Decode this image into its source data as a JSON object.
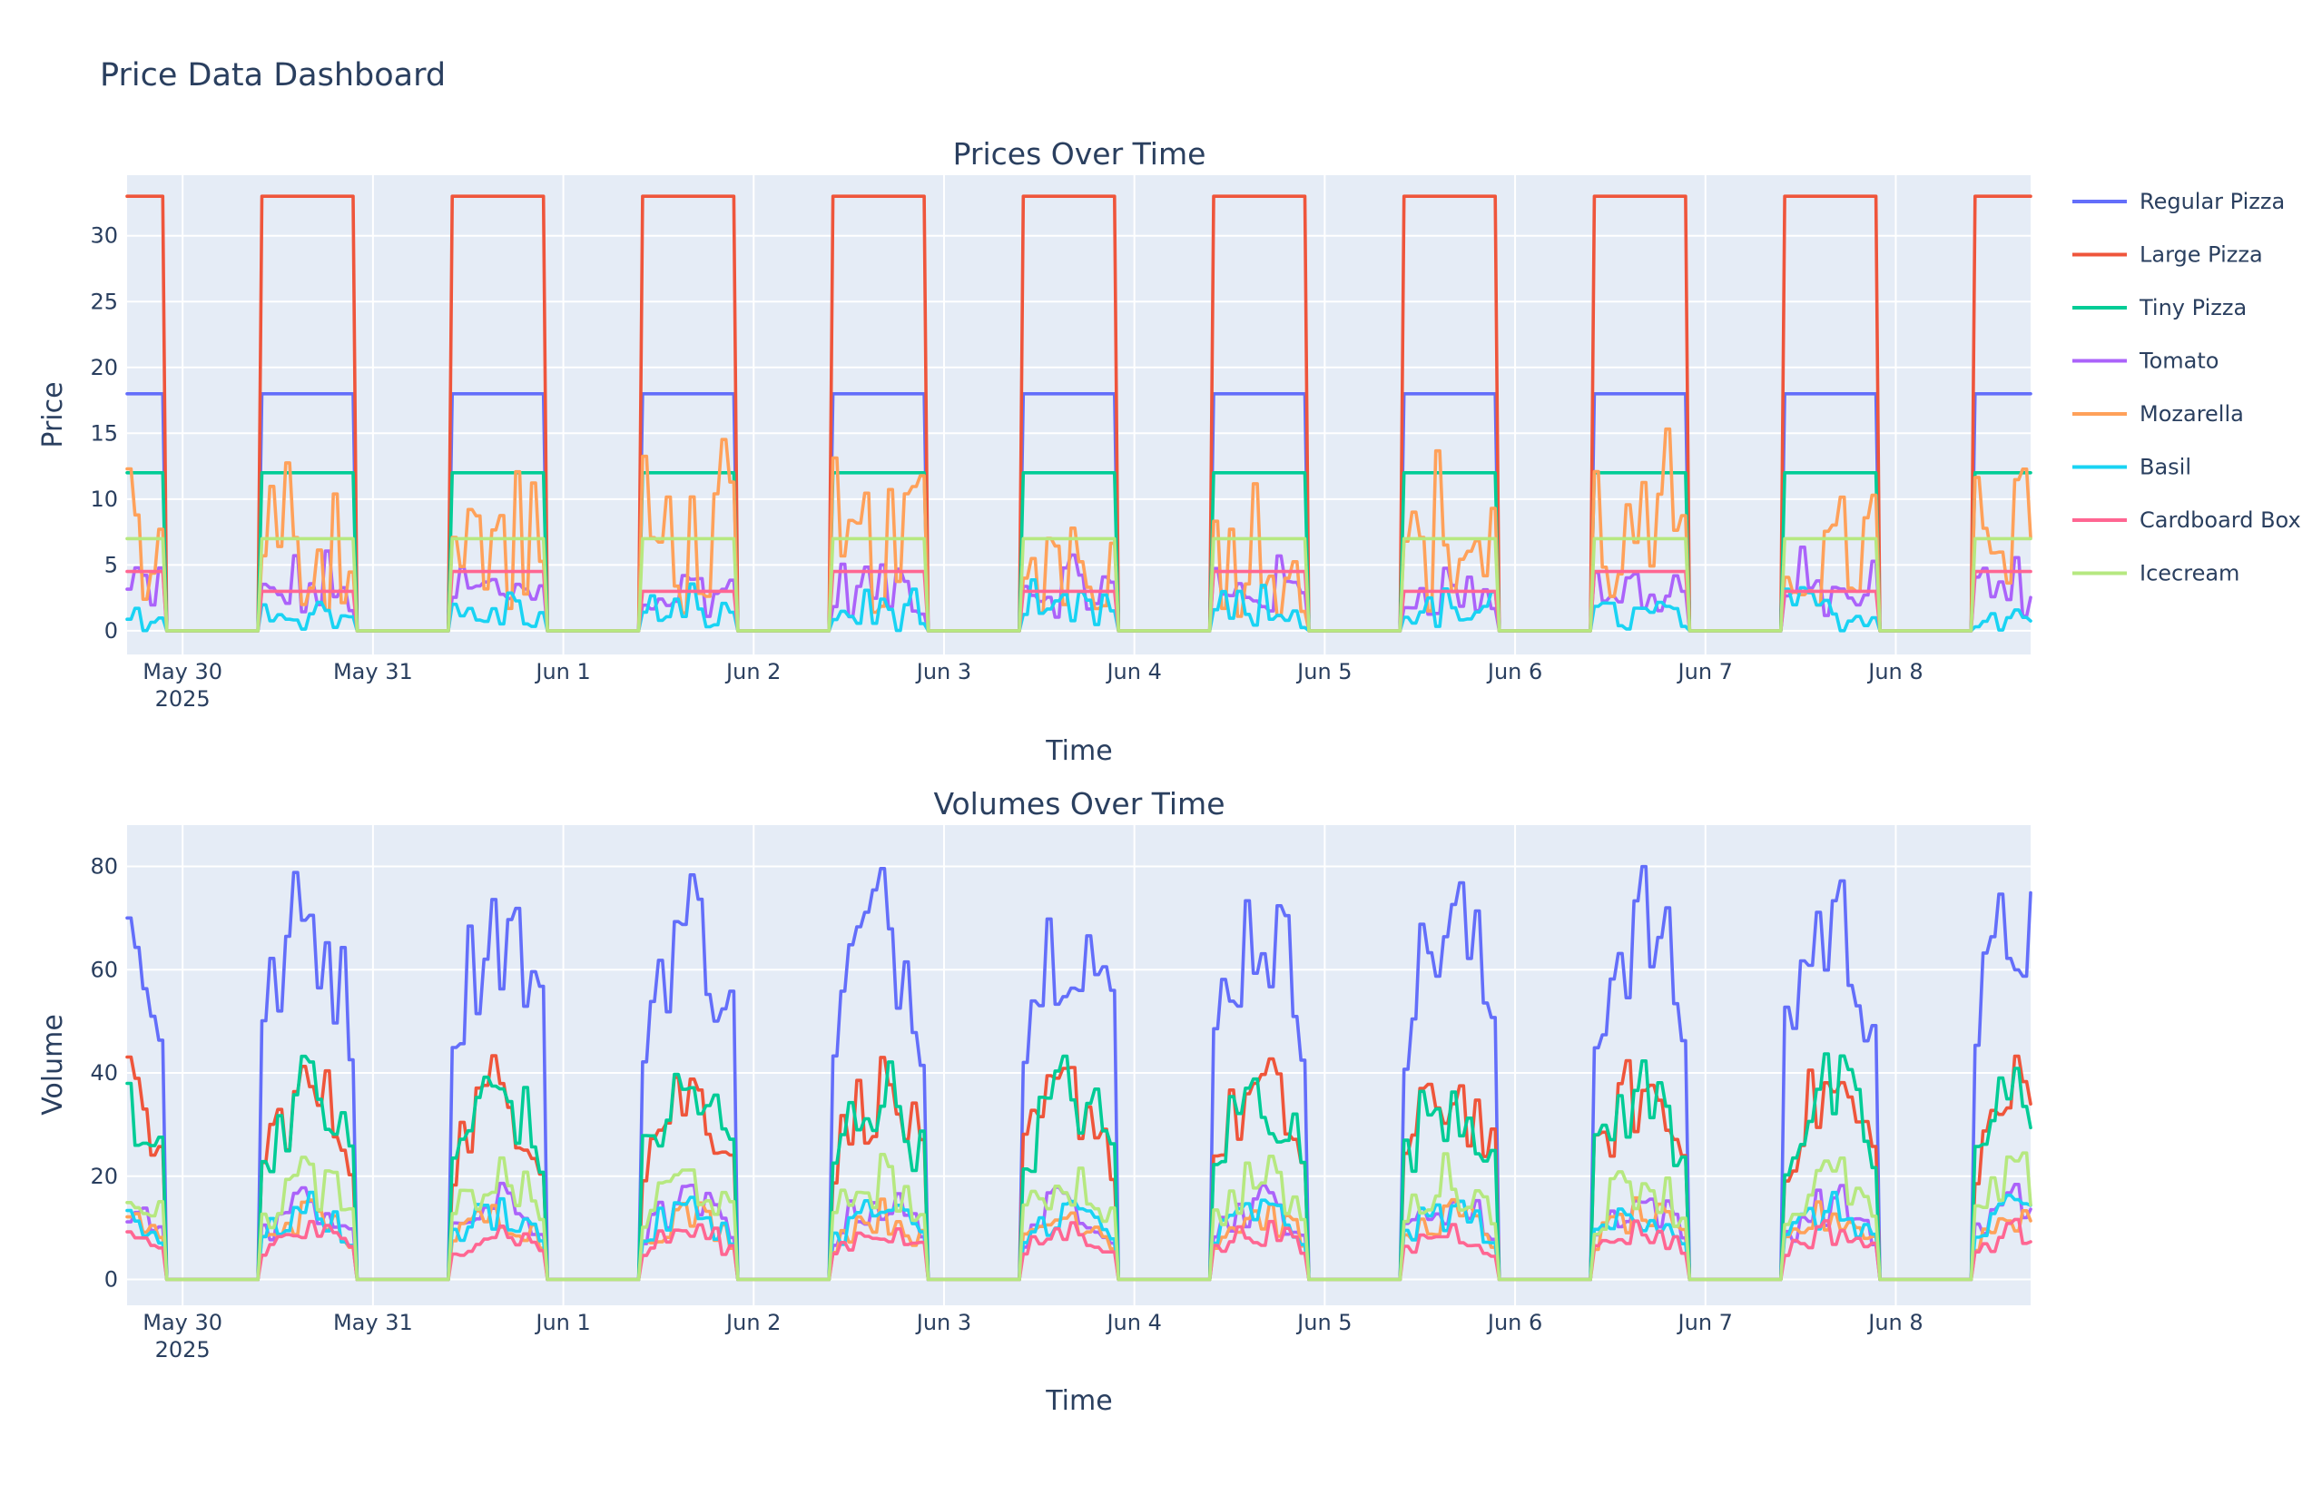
{
  "page": {
    "title": "Price Data Dashboard"
  },
  "legend": {
    "items": [
      {
        "name": "Regular Pizza",
        "color": "#636efa"
      },
      {
        "name": "Large Pizza",
        "color": "#ef553b"
      },
      {
        "name": "Tiny Pizza",
        "color": "#00cc96"
      },
      {
        "name": "Tomato",
        "color": "#ab63fa"
      },
      {
        "name": "Mozarella",
        "color": "#ffa15a"
      },
      {
        "name": "Basil",
        "color": "#19d3f3"
      },
      {
        "name": "Cardboard Box",
        "color": "#ff6692"
      },
      {
        "name": "Icecream",
        "color": "#b6e880"
      }
    ]
  },
  "chart_data": [
    {
      "type": "line",
      "title": "Prices Over Time",
      "xlabel": "Time",
      "ylabel": "Price",
      "x_tick_labels": [
        "May 30",
        "May 31",
        "Jun 1",
        "Jun 2",
        "Jun 3",
        "Jun 4",
        "Jun 5",
        "Jun 6",
        "Jun 7",
        "Jun 8"
      ],
      "x_year_label": "2025",
      "x_range": [
        "2025-05-29T17:00",
        "2025-06-08T17:00"
      ],
      "y_tick_labels": [
        "0",
        "5",
        "10",
        "15",
        "20",
        "25",
        "30"
      ],
      "ylim": [
        -1.8,
        34.6
      ],
      "open_hours": "10:00-22:00 daily",
      "grid": true,
      "legend_position": "right",
      "series": [
        {
          "name": "Regular Pizza",
          "color": "#636efa",
          "open_value": 18,
          "closed_value": 0
        },
        {
          "name": "Large Pizza",
          "color": "#ef553b",
          "open_value": 33,
          "closed_value": 0
        },
        {
          "name": "Tiny Pizza",
          "color": "#00cc96",
          "open_value": 12,
          "closed_value": 0
        },
        {
          "name": "Tomato",
          "color": "#ab63fa",
          "open_range": [
            1,
            7
          ],
          "closed_value": 0
        },
        {
          "name": "Mozarella",
          "color": "#ffa15a",
          "open_range": [
            1,
            17
          ],
          "closed_value": 0
        },
        {
          "name": "Basil",
          "color": "#19d3f3",
          "open_range": [
            0,
            4
          ],
          "closed_value": 0
        },
        {
          "name": "Cardboard Box",
          "color": "#ff6692",
          "open_value_alternating": [
            4.5,
            3.0
          ],
          "closed_value": 0
        },
        {
          "name": "Icecream",
          "color": "#b6e880",
          "open_value": 7,
          "closed_value": 0
        }
      ]
    },
    {
      "type": "line",
      "title": "Volumes Over Time",
      "xlabel": "Time",
      "ylabel": "Volume",
      "x_tick_labels": [
        "May 30",
        "May 31",
        "Jun 1",
        "Jun 2",
        "Jun 3",
        "Jun 4",
        "Jun 5",
        "Jun 6",
        "Jun 7",
        "Jun 8"
      ],
      "x_year_label": "2025",
      "x_range": [
        "2025-05-29T17:00",
        "2025-06-08T17:00"
      ],
      "y_tick_labels": [
        "0",
        "20",
        "40",
        "60",
        "80"
      ],
      "ylim": [
        -5,
        88
      ],
      "open_hours": "10:00-22:00 daily",
      "grid": true,
      "series": [
        {
          "name": "Regular Pizza",
          "color": "#636efa",
          "open_range": [
            20,
            83
          ]
        },
        {
          "name": "Large Pizza",
          "color": "#ef553b",
          "open_range": [
            5,
            45
          ]
        },
        {
          "name": "Tiny Pizza",
          "color": "#00cc96",
          "open_range": [
            5,
            45
          ]
        },
        {
          "name": "Tomato",
          "color": "#ab63fa",
          "open_range": [
            0,
            19
          ]
        },
        {
          "name": "Mozarella",
          "color": "#ffa15a",
          "open_range": [
            0,
            16
          ]
        },
        {
          "name": "Basil",
          "color": "#19d3f3",
          "open_range": [
            0,
            17
          ]
        },
        {
          "name": "Cardboard Box",
          "color": "#ff6692",
          "open_range": [
            0,
            12
          ]
        },
        {
          "name": "Icecream",
          "color": "#b6e880",
          "open_range": [
            0,
            25
          ]
        }
      ]
    }
  ]
}
